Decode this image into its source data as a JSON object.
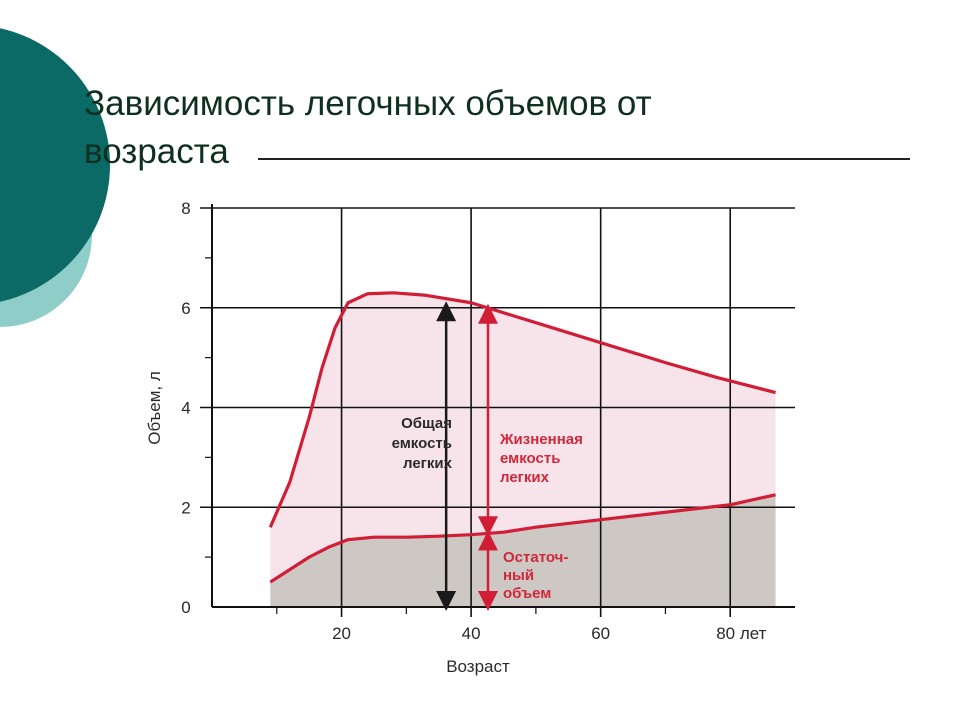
{
  "slide": {
    "title_line1": "Зависимость легочных объемов от",
    "title_line2": "возраста"
  },
  "colors": {
    "teal_dark": "#0b6a66",
    "teal_light": "#8fcdc8",
    "curve": "#d11e36",
    "shade_pink": "#f7e4ea",
    "shade_gray": "#cdc8c3"
  },
  "chart_data": {
    "type": "line",
    "xlabel": "Возраст",
    "ylabel": "Объем, л",
    "xlim": [
      0,
      90
    ],
    "ylim": [
      0,
      8
    ],
    "x_ticks": [
      20,
      40,
      60,
      80
    ],
    "x_tick_labels": [
      "20",
      "40",
      "60",
      "80 лет"
    ],
    "y_ticks": [
      0,
      2,
      4,
      6,
      8
    ],
    "y_tick_labels": [
      "0",
      "2",
      "4",
      "6",
      "8"
    ],
    "grid": true,
    "series": [
      {
        "name": "Общая емкость легких",
        "x": [
          9,
          12,
          15,
          17,
          19,
          21,
          24,
          28,
          33,
          40,
          50,
          60,
          70,
          78,
          87
        ],
        "y": [
          1.6,
          2.5,
          3.8,
          4.8,
          5.6,
          6.1,
          6.28,
          6.3,
          6.25,
          6.1,
          5.7,
          5.3,
          4.9,
          4.6,
          4.3
        ]
      },
      {
        "name": "Остаточный объем",
        "x": [
          9,
          12,
          15,
          18,
          21,
          25,
          30,
          35,
          40,
          45,
          50,
          60,
          70,
          80,
          87
        ],
        "y": [
          0.5,
          0.75,
          1.0,
          1.2,
          1.35,
          1.4,
          1.4,
          1.42,
          1.45,
          1.5,
          1.6,
          1.75,
          1.9,
          2.05,
          2.25
        ]
      }
    ],
    "annotations": [
      {
        "name": "total-capacity",
        "lines": [
          "Общая",
          "емкость",
          "легких"
        ],
        "x": 38,
        "y_from": 0,
        "y_to": 6.05
      },
      {
        "name": "vital-capacity",
        "lines": [
          "Жизненная",
          "емкость",
          "легких"
        ],
        "x": 41,
        "y_from": 1.5,
        "y_to": 6.0
      },
      {
        "name": "residual-volume",
        "lines": [
          "Остаточ-",
          "ный",
          "объем"
        ],
        "x": 41,
        "y_from": 0,
        "y_to": 1.45
      }
    ]
  }
}
